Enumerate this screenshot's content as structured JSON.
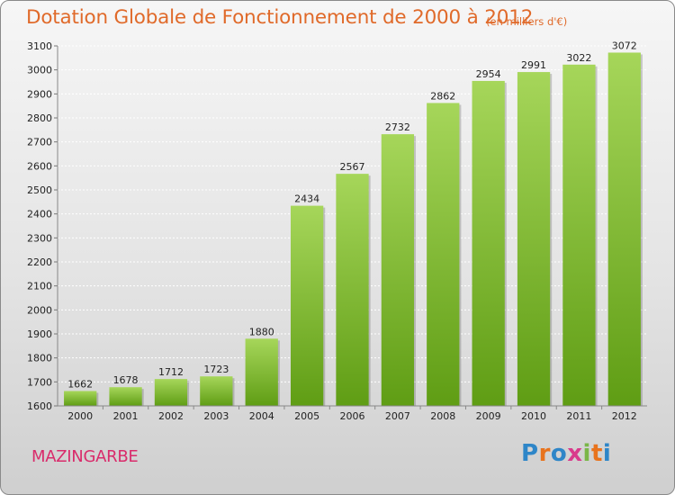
{
  "title": "Dotation Globale de Fonctionnement de 2000 à 2012",
  "unit": "(en milliers d'€)",
  "city": "MAZINGARBE",
  "logo": {
    "text": "Proxiti",
    "letters": [
      {
        "ch": "P",
        "color": "#2e86c8"
      },
      {
        "ch": "r",
        "color": "#e8731d"
      },
      {
        "ch": "o",
        "color": "#2e86c8"
      },
      {
        "ch": "x",
        "color": "#d93a8c"
      },
      {
        "ch": "i",
        "color": "#7ab648"
      },
      {
        "ch": "t",
        "color": "#e8731d"
      },
      {
        "ch": "i",
        "color": "#2e86c8"
      }
    ]
  },
  "colors": {
    "bar_top": "#a6d65a",
    "bar_bottom": "#5f9d14",
    "title": "#e06a2a",
    "city": "#d92b6b"
  },
  "chart_data": {
    "type": "bar",
    "categories": [
      "2000",
      "2001",
      "2002",
      "2003",
      "2004",
      "2005",
      "2006",
      "2007",
      "2008",
      "2009",
      "2010",
      "2011",
      "2012"
    ],
    "values": [
      1662,
      1678,
      1712,
      1723,
      1880,
      2434,
      2567,
      2732,
      2862,
      2954,
      2991,
      3022,
      3072
    ],
    "ylim": [
      1600,
      3100
    ],
    "yticks": [
      1600,
      1700,
      1800,
      1900,
      2000,
      2100,
      2200,
      2300,
      2400,
      2500,
      2600,
      2700,
      2800,
      2900,
      3000,
      3100
    ],
    "grid": true,
    "data_labels": true
  }
}
